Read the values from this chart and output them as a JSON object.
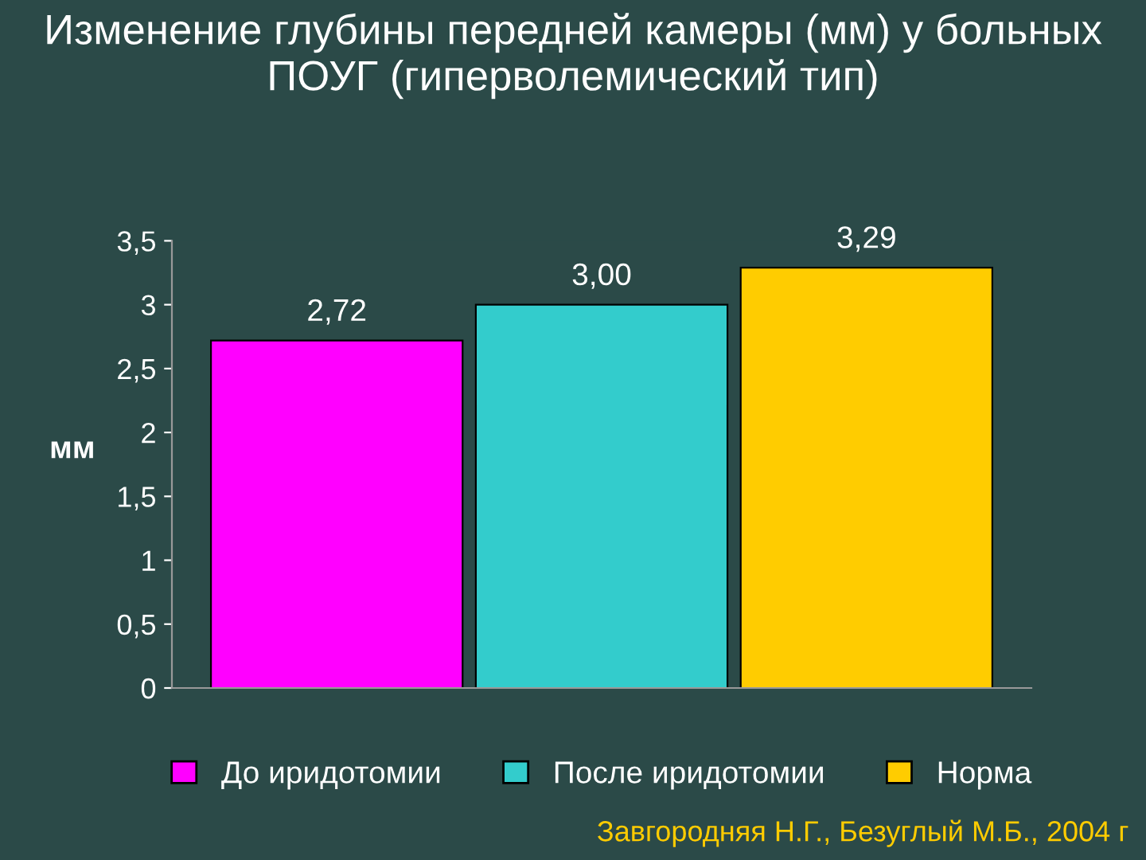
{
  "chart_data": {
    "type": "bar",
    "title": "Изменение глубины передней камеры (мм) у больных ПОУГ (гиперволемический тип)",
    "ylabel": "мм",
    "categories": [
      null
    ],
    "series": [
      {
        "name": "До иридотомии",
        "color": "#ff00ff",
        "values": [
          2.72
        ],
        "value_labels": [
          "2,72"
        ]
      },
      {
        "name": "После иридотомии",
        "color": "#33cccc",
        "values": [
          3.0
        ],
        "value_labels": [
          "3,00"
        ]
      },
      {
        "name": "Норма",
        "color": "#ffcc00",
        "values": [
          3.29
        ],
        "value_labels": [
          "3,29"
        ]
      }
    ],
    "ylim": [
      0,
      3.5
    ],
    "yticks": [
      0,
      {
        "value": 0.5,
        "label": "0,5"
      },
      1,
      {
        "value": 1.5,
        "label": "1,5"
      },
      2,
      {
        "value": 2.5,
        "label": "2,5"
      },
      3,
      {
        "value": 3.5,
        "label": "3,5"
      }
    ],
    "legend": "bottom",
    "annotations": [
      "Завгородняя Н.Г., Безуглый М.Б., 2004 г"
    ]
  }
}
